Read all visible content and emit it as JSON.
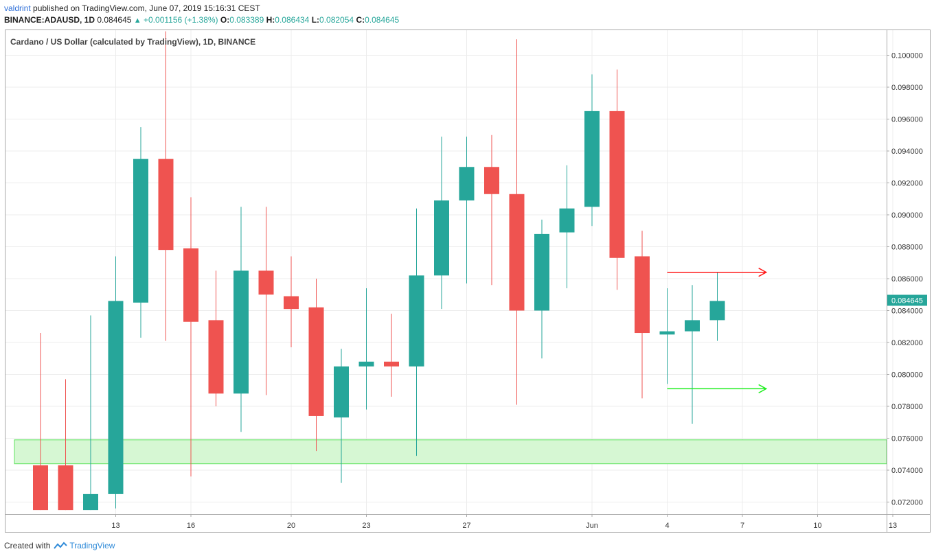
{
  "header": {
    "publisher": "valdrint",
    "published_text": "published on TradingView.com, June 07, 2019 15:16:31 CEST",
    "symbol": "BINANCE:ADAUSD, 1D",
    "last": "0.084645",
    "change": "+0.001156 (+1.38%)",
    "o_label": "O:",
    "o": "0.083389",
    "h_label": "H:",
    "h": "0.086434",
    "l_label": "L:",
    "l": "0.082054",
    "c_label": "C:",
    "c": "0.084645"
  },
  "footer": {
    "created_with": "Created with",
    "brand": "TradingView"
  },
  "colors": {
    "up": "#26a69a",
    "down": "#ef5350",
    "zone_fill": "#d6f7d3",
    "zone_stroke": "#5de35d",
    "arrow_red": "#ff1a1a",
    "arrow_green": "#22ee22"
  },
  "chart_data": {
    "type": "candlestick",
    "title": "Cardano / US Dollar (calculated by TradingView), 1D, BINANCE",
    "ylim": [
      0.0715,
      0.1015
    ],
    "y_ticks": [
      "0.100000",
      "0.098000",
      "0.096000",
      "0.094000",
      "0.092000",
      "0.090000",
      "0.088000",
      "0.086000",
      "0.084000",
      "0.082000",
      "0.080000",
      "0.078000",
      "0.076000",
      "0.074000",
      "0.072000"
    ],
    "x_ticks": [
      {
        "label": "13",
        "index": 3
      },
      {
        "label": "16",
        "index": 6
      },
      {
        "label": "20",
        "index": 10
      },
      {
        "label": "23",
        "index": 13
      },
      {
        "label": "27",
        "index": 17
      },
      {
        "label": "Jun",
        "index": 22
      },
      {
        "label": "4",
        "index": 25
      },
      {
        "label": "7",
        "index": 28
      },
      {
        "label": "10",
        "index": 31
      },
      {
        "label": "13",
        "index": 34
      }
    ],
    "last_price_label": "0.084645",
    "candles": [
      {
        "o": 0.0743,
        "h": 0.0826,
        "l": 0.0715,
        "c": 0.0715
      },
      {
        "o": 0.0743,
        "h": 0.0797,
        "l": 0.0715,
        "c": 0.0715
      },
      {
        "o": 0.0715,
        "h": 0.0837,
        "l": 0.0715,
        "c": 0.0725
      },
      {
        "o": 0.0725,
        "h": 0.0874,
        "l": 0.0716,
        "c": 0.0846
      },
      {
        "o": 0.0845,
        "h": 0.0955,
        "l": 0.0823,
        "c": 0.0935
      },
      {
        "o": 0.0935,
        "h": 0.1015,
        "l": 0.0821,
        "c": 0.0878
      },
      {
        "o": 0.0879,
        "h": 0.0911,
        "l": 0.0736,
        "c": 0.0833
      },
      {
        "o": 0.0834,
        "h": 0.0865,
        "l": 0.078,
        "c": 0.0788
      },
      {
        "o": 0.0788,
        "h": 0.0905,
        "l": 0.0764,
        "c": 0.0865
      },
      {
        "o": 0.0865,
        "h": 0.0905,
        "l": 0.0787,
        "c": 0.085
      },
      {
        "o": 0.0849,
        "h": 0.0874,
        "l": 0.0817,
        "c": 0.0841
      },
      {
        "o": 0.0842,
        "h": 0.086,
        "l": 0.0752,
        "c": 0.0774
      },
      {
        "o": 0.0773,
        "h": 0.0816,
        "l": 0.0732,
        "c": 0.0805
      },
      {
        "o": 0.0805,
        "h": 0.0854,
        "l": 0.0778,
        "c": 0.0808
      },
      {
        "o": 0.0808,
        "h": 0.0838,
        "l": 0.0786,
        "c": 0.0805
      },
      {
        "o": 0.0805,
        "h": 0.0904,
        "l": 0.0749,
        "c": 0.0862
      },
      {
        "o": 0.0862,
        "h": 0.0949,
        "l": 0.0841,
        "c": 0.0909
      },
      {
        "o": 0.0909,
        "h": 0.0949,
        "l": 0.0857,
        "c": 0.093
      },
      {
        "o": 0.093,
        "h": 0.095,
        "l": 0.0856,
        "c": 0.0913
      },
      {
        "o": 0.0913,
        "h": 0.101,
        "l": 0.0781,
        "c": 0.084
      },
      {
        "o": 0.084,
        "h": 0.0897,
        "l": 0.081,
        "c": 0.0888
      },
      {
        "o": 0.0889,
        "h": 0.0931,
        "l": 0.0854,
        "c": 0.0904
      },
      {
        "o": 0.0905,
        "h": 0.0988,
        "l": 0.0893,
        "c": 0.0965
      },
      {
        "o": 0.0965,
        "h": 0.0991,
        "l": 0.0853,
        "c": 0.0873
      },
      {
        "o": 0.0874,
        "h": 0.089,
        "l": 0.0785,
        "c": 0.0826
      },
      {
        "o": 0.0825,
        "h": 0.0854,
        "l": 0.0794,
        "c": 0.0827
      },
      {
        "o": 0.0827,
        "h": 0.0856,
        "l": 0.0769,
        "c": 0.0834
      },
      {
        "o": 0.0834,
        "h": 0.0864,
        "l": 0.0821,
        "c": 0.0846
      }
    ],
    "support_zone": {
      "low": 0.0744,
      "high": 0.0759
    },
    "arrows": [
      {
        "color": "red",
        "y": 0.0864,
        "from_index": 25,
        "to_index": 28.95
      },
      {
        "color": "green",
        "y": 0.0791,
        "from_index": 25,
        "to_index": 28.95
      }
    ]
  }
}
